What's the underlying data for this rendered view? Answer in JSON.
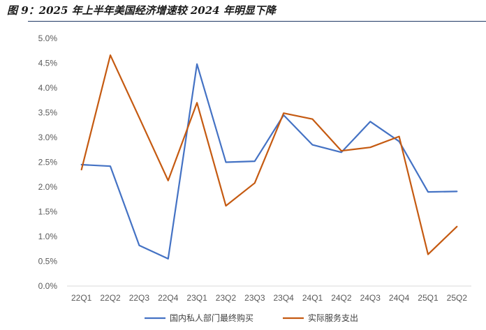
{
  "figure_title": "图 9：2025 年上半年美国经济增速较 2024 年明显下降",
  "chart_data": {
    "type": "line",
    "title": "",
    "xlabel": "",
    "ylabel": "",
    "categories": [
      "22Q1",
      "22Q2",
      "22Q3",
      "22Q4",
      "23Q1",
      "23Q2",
      "23Q3",
      "23Q4",
      "24Q1",
      "24Q2",
      "24Q3",
      "24Q4",
      "25Q1",
      "25Q2"
    ],
    "ylim": [
      0,
      5.0
    ],
    "yticks": [
      "0.0%",
      "0.5%",
      "1.0%",
      "1.5%",
      "2.0%",
      "2.5%",
      "3.0%",
      "3.5%",
      "4.0%",
      "4.5%",
      "5.0%"
    ],
    "y_unit": "%",
    "grid": false,
    "legend_position": "bottom",
    "series": [
      {
        "name": "国内私人部门最终购买",
        "color": "#4472c4",
        "values": [
          2.45,
          2.42,
          0.82,
          0.55,
          4.48,
          2.5,
          2.52,
          3.45,
          2.85,
          2.7,
          3.32,
          2.92,
          1.9,
          1.91
        ]
      },
      {
        "name": "实际服务支出",
        "color": "#c55a11",
        "values": [
          2.35,
          4.66,
          3.4,
          2.13,
          3.7,
          1.62,
          2.08,
          3.49,
          3.37,
          2.73,
          2.8,
          3.02,
          0.64,
          1.2
        ]
      }
    ]
  }
}
